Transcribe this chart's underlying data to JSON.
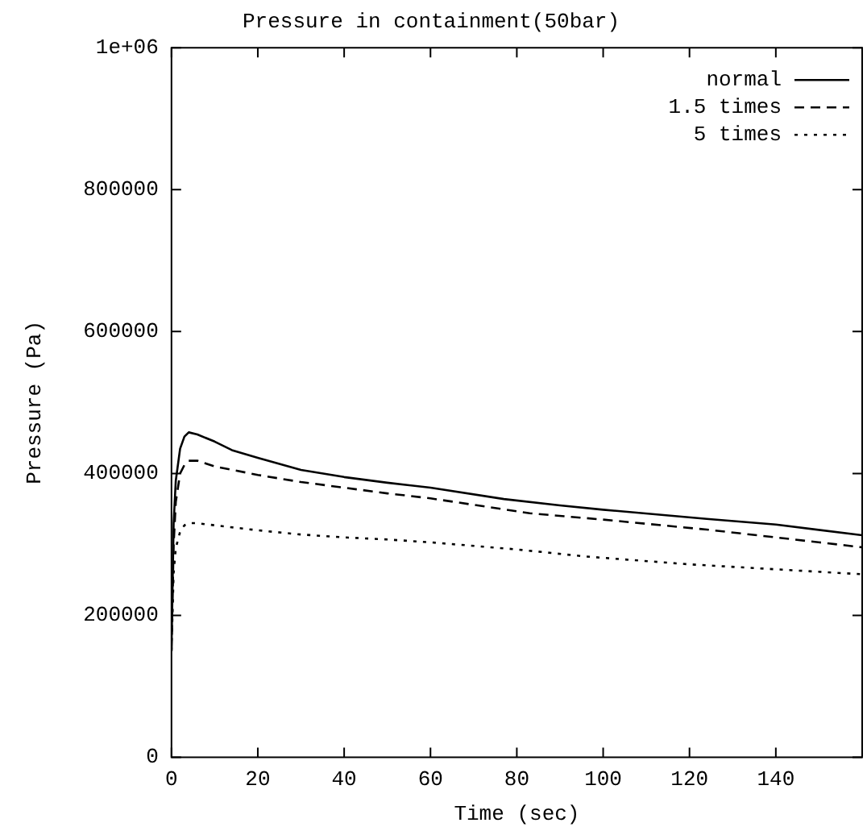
{
  "chart_data": {
    "type": "line",
    "title": "Pressure in containment(50bar)",
    "xlabel": "Time (sec)",
    "ylabel": "Pressure (Pa)",
    "xlim": [
      0,
      160
    ],
    "xticks": [
      0,
      20,
      40,
      60,
      80,
      100,
      120,
      140
    ],
    "ylim": [
      0,
      1000000
    ],
    "yticks": [
      0,
      200000,
      400000,
      600000,
      800000,
      {
        "value": 1000000,
        "label": "1e+06"
      }
    ],
    "grid": false,
    "legend": "top right",
    "marker": "none",
    "series": [
      {
        "name": "normal",
        "color": "#000000",
        "line_style": "solid",
        "x": [
          0,
          0.5,
          1,
          2,
          3,
          4,
          6,
          10,
          14,
          20,
          30,
          40,
          50,
          60,
          77,
          90,
          100,
          124,
          140,
          160
        ],
        "values": [
          150000,
          330000,
          390000,
          435000,
          452000,
          458000,
          455000,
          445000,
          433000,
          422000,
          405000,
          395000,
          387000,
          380000,
          364000,
          355000,
          349000,
          336000,
          328000,
          313000
        ]
      },
      {
        "name": "1.5 times",
        "color": "#000000",
        "line_style": "dashed",
        "x": [
          0,
          0.5,
          1,
          2,
          3,
          4,
          6,
          10,
          20,
          30,
          40,
          50,
          60,
          83,
          100,
          124,
          140,
          160
        ],
        "values": [
          150000,
          300000,
          360000,
          400000,
          412000,
          418000,
          418000,
          410000,
          398000,
          388000,
          380000,
          372000,
          365000,
          344000,
          335000,
          321000,
          310000,
          296000
        ]
      },
      {
        "name": "5 times",
        "color": "#000000",
        "line_style": "dotted",
        "x": [
          0,
          0.5,
          1,
          2,
          3,
          4,
          6,
          10,
          20,
          30,
          40,
          50,
          60,
          80,
          96,
          120,
          140,
          160
        ],
        "values": [
          150000,
          260000,
          295000,
          318000,
          327000,
          330000,
          330000,
          327000,
          320000,
          314000,
          310000,
          307000,
          303000,
          293000,
          283000,
          272000,
          265000,
          258000
        ]
      }
    ]
  }
}
